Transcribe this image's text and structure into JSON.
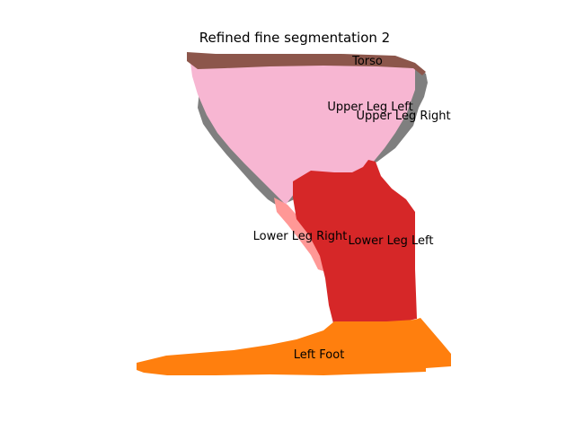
{
  "figure": {
    "title": "Refined fine segmentation 2"
  },
  "regions": [
    {
      "name": "Torso",
      "color": "#8c564b"
    },
    {
      "name": "Upper Leg Left",
      "color": "#f7b6d2"
    },
    {
      "name": "Upper Leg Right",
      "color": "#7f7f7f"
    },
    {
      "name": "Lower Leg Right",
      "color": "#ff9896"
    },
    {
      "name": "Lower Leg Left",
      "color": "#d62728"
    },
    {
      "name": "Left Foot",
      "color": "#ff7f0e"
    }
  ]
}
